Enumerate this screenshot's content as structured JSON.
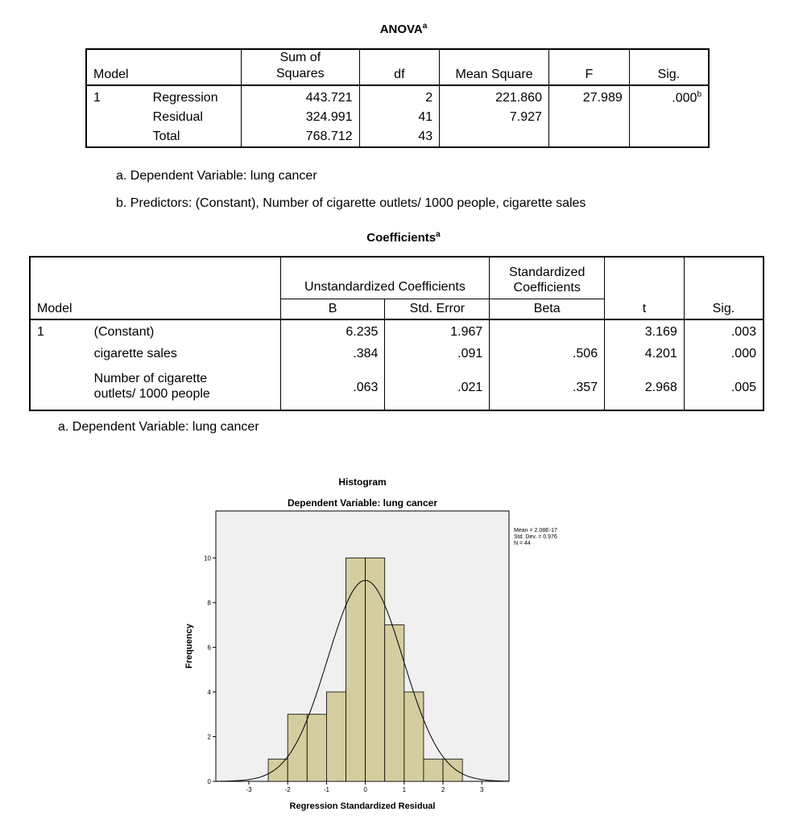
{
  "anova": {
    "title": "ANOVA",
    "title_sup": "a",
    "headers": {
      "model": "Model",
      "ss_line1": "Sum of",
      "ss_line2": "Squares",
      "df": "df",
      "ms": "Mean Square",
      "f": "F",
      "sig": "Sig."
    },
    "model_number": "1",
    "rows": [
      {
        "label": "Regression",
        "ss": "443.721",
        "df": "2",
        "ms": "221.860",
        "f": "27.989",
        "sig": ".000",
        "sig_sup": "b"
      },
      {
        "label": "Residual",
        "ss": "324.991",
        "df": "41",
        "ms": "7.927",
        "f": "",
        "sig": ""
      },
      {
        "label": "Total",
        "ss": "768.712",
        "df": "43",
        "ms": "",
        "f": "",
        "sig": ""
      }
    ],
    "footnotes": [
      "a. Dependent Variable: lung cancer",
      "b. Predictors: (Constant), Number of cigarette outlets/ 1000 people, cigarette sales"
    ]
  },
  "coefficients": {
    "title": "Coefficients",
    "title_sup": "a",
    "headers": {
      "model": "Model",
      "unstd": "Unstandardized Coefficients",
      "std_line1": "Standardized",
      "std_line2": "Coefficients",
      "b": "B",
      "se": "Std. Error",
      "beta": "Beta",
      "t": "t",
      "sig": "Sig."
    },
    "model_number": "1",
    "rows": [
      {
        "label": "(Constant)",
        "b": "6.235",
        "se": "1.967",
        "beta": "",
        "t": "3.169",
        "sig": ".003"
      },
      {
        "label": "cigarette sales",
        "b": ".384",
        "se": ".091",
        "beta": ".506",
        "t": "4.201",
        "sig": ".000"
      },
      {
        "label_line1": "Number of cigarette",
        "label_line2": "outlets/ 1000 people",
        "b": ".063",
        "se": ".021",
        "beta": ".357",
        "t": "2.968",
        "sig": ".005"
      }
    ],
    "footnote": "a. Dependent Variable: lung cancer"
  },
  "chart_data": {
    "type": "bar",
    "title": "Histogram",
    "subtitle": "Dependent Variable: lung cancer",
    "xlabel": "Regression Standardized Residual",
    "ylabel": "Frequency",
    "bin_width": 0.5,
    "bins": [
      {
        "x0": -2.5,
        "x1": -2.0,
        "count": 1
      },
      {
        "x0": -2.0,
        "x1": -1.5,
        "count": 3
      },
      {
        "x0": -1.5,
        "x1": -1.0,
        "count": 3
      },
      {
        "x0": -1.0,
        "x1": -0.5,
        "count": 4
      },
      {
        "x0": -0.5,
        "x1": 0.0,
        "count": 10
      },
      {
        "x0": 0.0,
        "x1": 0.5,
        "count": 10
      },
      {
        "x0": 0.5,
        "x1": 1.0,
        "count": 7
      },
      {
        "x0": 1.0,
        "x1": 1.5,
        "count": 4
      },
      {
        "x0": 1.5,
        "x1": 2.0,
        "count": 1
      },
      {
        "x0": 2.0,
        "x1": 2.5,
        "count": 1
      }
    ],
    "xlim": [
      -3.85,
      3.7
    ],
    "ylim": [
      0,
      12.1
    ],
    "xticks": [
      -3,
      -2,
      -1,
      0,
      1,
      2,
      3
    ],
    "yticks": [
      0,
      2,
      4,
      6,
      8,
      10
    ],
    "normal_curve": {
      "mean": 0,
      "sd": 0.976,
      "n": 44,
      "bin_width": 0.5
    },
    "stats": [
      "Mean = 2.08E-17",
      "Std. Dev. = 0.976",
      "N = 44"
    ],
    "colors": {
      "bar": "#d4cd9f",
      "background": "#f0f0f0"
    }
  }
}
